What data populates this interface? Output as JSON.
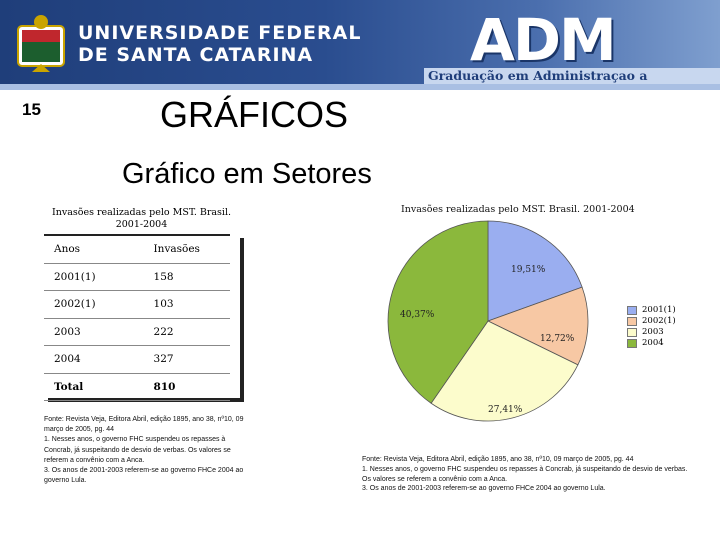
{
  "header": {
    "university_line1": "UNIVERSIDADE FEDERAL",
    "university_line2": "DE SANTA CATARINA",
    "program_logo": "ADM",
    "program_subtitle": "Graduação em Administraçao a Distância"
  },
  "slide": {
    "number": "15",
    "title": "GRÁFICOS",
    "subtitle": "Gráfico em Setores"
  },
  "table": {
    "caption_line1": "Invasões realizadas pelo MST. Brasil.",
    "caption_line2": "2001-2004",
    "headers": [
      "Anos",
      "Invasões"
    ],
    "rows": [
      [
        "2001(1)",
        "158"
      ],
      [
        "2002(1)",
        "103"
      ],
      [
        "2003",
        "222"
      ],
      [
        "2004",
        "327"
      ],
      [
        "Total",
        "810"
      ]
    ]
  },
  "source_left": {
    "line1": "Fonte: Revista Veja, Editora Abril, edição 1895, ano 38, nº10, 09 março de 2005, pg. 44",
    "line2": "1. Nesses anos, o governo FHC suspendeu os repasses à Concrab, já suspeitando de desvio de verbas. Os valores se referem a convênio com a Anca.",
    "line3": "3. Os anos de 2001-2003 referem-se ao governo FHCe 2004 ao governo Lula."
  },
  "source_right": {
    "line1": "Fonte: Revista Veja, Editora Abril, edição 1895, ano 38, nº10, 09 março de 2005, pg. 44",
    "line2": "1. Nesses anos, o governo FHC suspendeu os repasses à Concrab, já suspeitando de desvio de verbas. Os valores se referem a convênio com a Anca.",
    "line3": "3. Os anos de 2001-2003 referem-se ao governo FHCe 2004 ao governo Lula."
  },
  "chart_data": {
    "type": "pie",
    "title": "Invasões realizadas pelo MST. Brasil. 2001-2004",
    "categories": [
      "2001(1)",
      "2002(1)",
      "2003",
      "2004"
    ],
    "values": [
      158,
      103,
      222,
      327
    ],
    "percent_labels": [
      "19,51%",
      "12,72%",
      "27,41%",
      "40,37%"
    ],
    "colors": [
      "#9aaef0",
      "#f7c8a4",
      "#fcfccc",
      "#8bb83c"
    ],
    "legend_position": "right"
  }
}
